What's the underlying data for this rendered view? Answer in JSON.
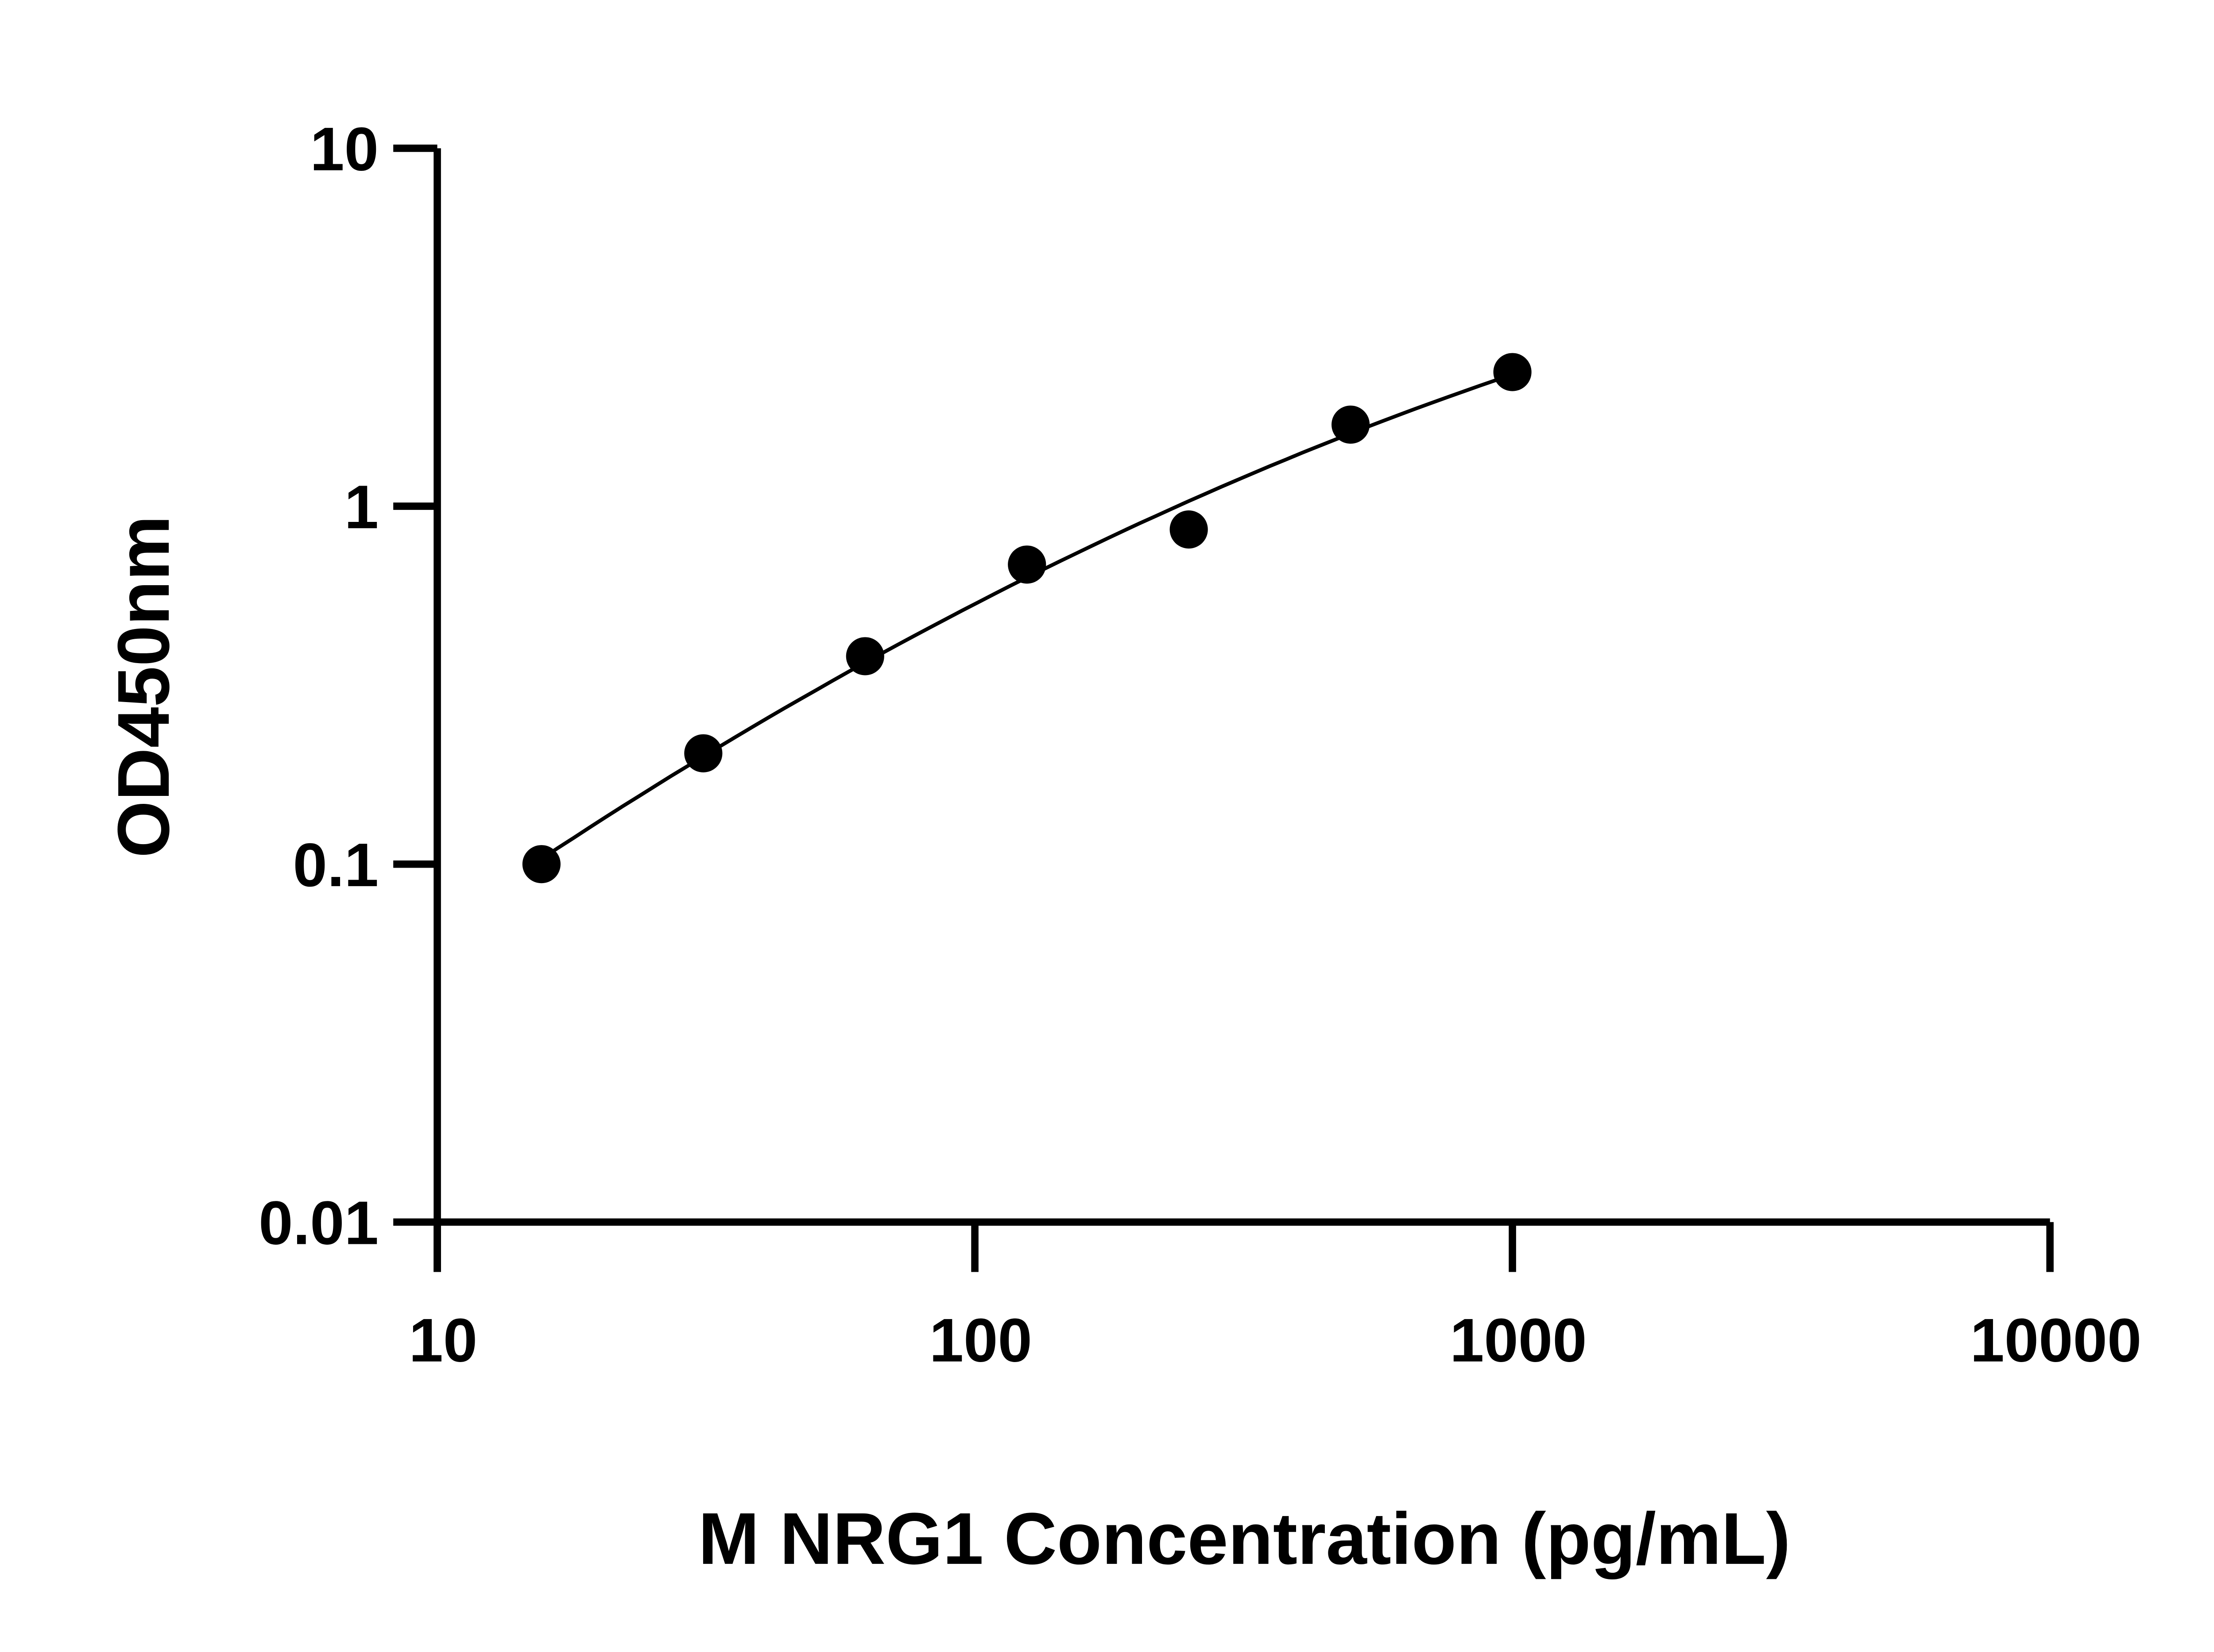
{
  "chart_data": {
    "type": "scatter",
    "title": "",
    "xlabel": "M NRG1 Concentration (pg/mL)",
    "ylabel": "OD450nm",
    "x_scale": "log",
    "y_scale": "log",
    "xlim": [
      10,
      10000
    ],
    "ylim": [
      0.01,
      10
    ],
    "x_ticks": [
      "10",
      "100",
      "1000",
      "10000"
    ],
    "y_ticks": [
      "0.01",
      "0.1",
      "1",
      "10"
    ],
    "grid": false,
    "legend": "none",
    "fit_line": "smooth curve through points (log-log)",
    "color": "#000000",
    "series": [
      {
        "x": [
          15.625,
          31.25,
          62.5,
          125,
          250,
          500,
          1000
        ],
        "y": [
          0.1,
          0.204,
          0.381,
          0.687,
          0.861,
          1.69,
          2.37
        ]
      }
    ]
  }
}
